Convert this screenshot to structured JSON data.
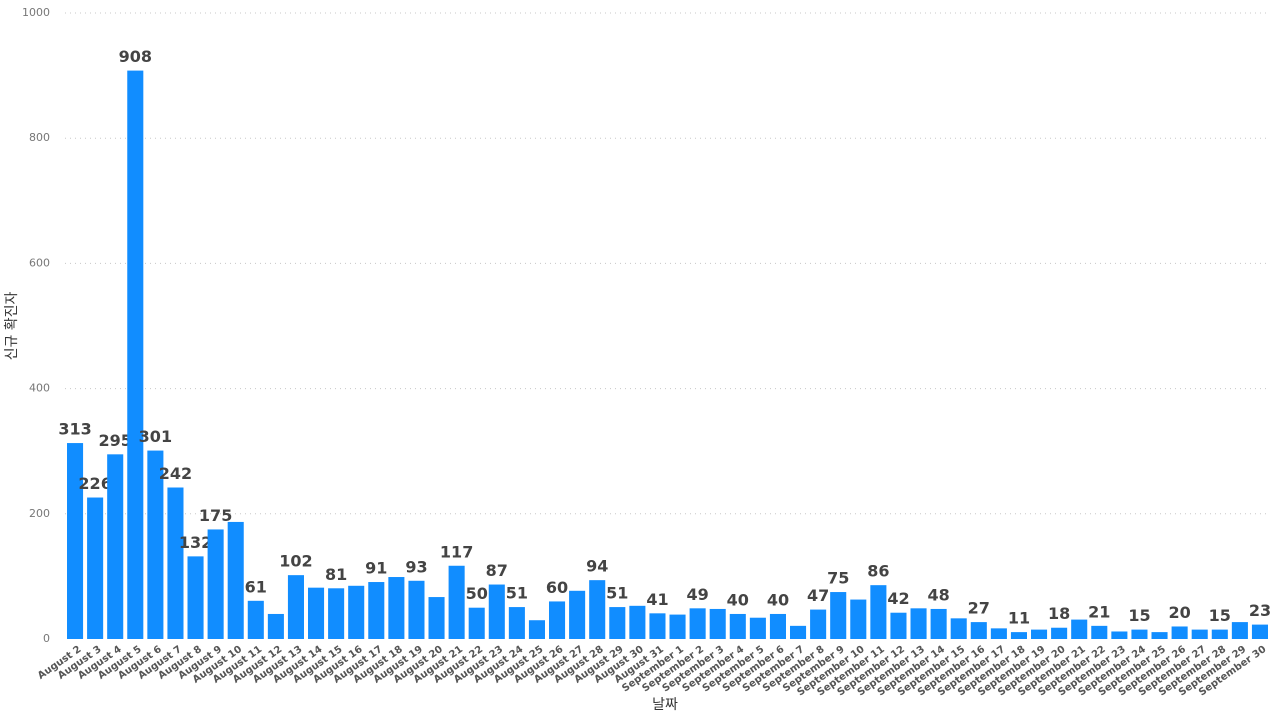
{
  "chart_data": {
    "type": "bar",
    "x_label": "날짜",
    "y_label": "신규 확진자",
    "categories": [
      "August 2",
      "August 3",
      "August 4",
      "August 5",
      "August 6",
      "August 7",
      "August 8",
      "August 9",
      "August 10",
      "August 11",
      "August 12",
      "August 13",
      "August 14",
      "August 15",
      "August 16",
      "August 17",
      "August 18",
      "August 19",
      "August 20",
      "August 21",
      "August 22",
      "August 23",
      "August 24",
      "August 25",
      "August 26",
      "August 27",
      "August 28",
      "August 29",
      "August 30",
      "August 31",
      "September 1",
      "September 2",
      "September 3",
      "September 4",
      "September 5",
      "September 6",
      "September 7",
      "September 8",
      "September 9",
      "September 10",
      "September 11",
      "September 12",
      "September 13",
      "September 14",
      "September 15",
      "September 16",
      "September 17",
      "September 18",
      "September 19",
      "September 20",
      "September 21",
      "September 22",
      "September 23",
      "September 24",
      "September 25",
      "September 26",
      "September 27",
      "September 28",
      "September 29",
      "September 30"
    ],
    "values": [
      313,
      226,
      295,
      908,
      301,
      242,
      132,
      175,
      187,
      61,
      40,
      102,
      82,
      81,
      85,
      91,
      99,
      93,
      67,
      117,
      50,
      87,
      51,
      30,
      60,
      77,
      94,
      51,
      53,
      41,
      39,
      49,
      48,
      40,
      34,
      40,
      21,
      47,
      75,
      63,
      86,
      42,
      49,
      48,
      33,
      27,
      17,
      11,
      15,
      18,
      31,
      21,
      12,
      15,
      11,
      20,
      15,
      15,
      27,
      23
    ],
    "value_labels": [
      313,
      226,
      295,
      908,
      301,
      242,
      132,
      175,
      null,
      61,
      null,
      102,
      null,
      81,
      null,
      91,
      null,
      93,
      null,
      117,
      50,
      87,
      51,
      null,
      60,
      null,
      94,
      51,
      null,
      41,
      null,
      49,
      null,
      40,
      null,
      40,
      null,
      47,
      75,
      null,
      86,
      42,
      null,
      48,
      null,
      27,
      null,
      11,
      null,
      18,
      null,
      21,
      null,
      15,
      null,
      20,
      null,
      15,
      null,
      23
    ],
    "color": "#118DFF",
    "ylim": [
      0,
      1000
    ],
    "yticks": [
      0,
      200,
      400,
      600,
      800,
      1000
    ],
    "grid": true
  }
}
